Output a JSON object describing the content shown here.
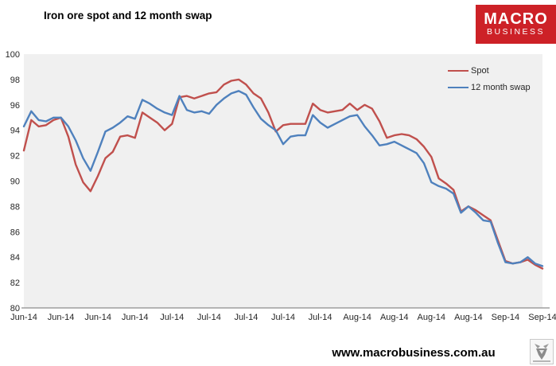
{
  "header": {
    "title": "Iron ore spot and 12 month swap"
  },
  "logo": {
    "line1": "MACRO",
    "line2": "BUSINESS",
    "bg_color": "#cd2127",
    "text_color": "#ffffff"
  },
  "footer": {
    "website": "www.macrobusiness.com.au"
  },
  "chart_data": {
    "type": "line",
    "title": "Iron ore spot and 12 month swap",
    "ylim": [
      80,
      100
    ],
    "y_ticks": [
      80,
      82,
      84,
      86,
      88,
      90,
      92,
      94,
      96,
      98,
      100
    ],
    "x_tick_labels": [
      "Jun-14",
      "Jun-14",
      "Jun-14",
      "Jun-14",
      "Jul-14",
      "Jul-14",
      "Jul-14",
      "Jul-14",
      "Jul-14",
      "Aug-14",
      "Aug-14",
      "Aug-14",
      "Aug-14",
      "Sep-14",
      "Sep-14"
    ],
    "x_tick_every": 5,
    "grid": false,
    "legend_position": "top-right-inside",
    "plot_bg": "#f0f0f0",
    "axis_color": "#8c8c8c",
    "tick_label_color": "#262626",
    "series": [
      {
        "name": "Spot",
        "color": "#c0504d",
        "values": [
          92.4,
          94.8,
          94.3,
          94.4,
          94.8,
          95.0,
          93.5,
          91.3,
          89.9,
          89.2,
          90.4,
          91.8,
          92.3,
          93.5,
          93.6,
          93.4,
          95.4,
          95.0,
          94.6,
          94.0,
          94.5,
          96.6,
          96.7,
          96.5,
          96.7,
          96.9,
          97.0,
          97.6,
          97.9,
          98.0,
          97.6,
          96.9,
          96.5,
          95.4,
          93.9,
          94.4,
          94.5,
          94.5,
          94.5,
          96.1,
          95.6,
          95.4,
          95.5,
          95.6,
          96.1,
          95.6,
          96.0,
          95.7,
          94.7,
          93.4,
          93.6,
          93.7,
          93.6,
          93.3,
          92.7,
          91.9,
          90.2,
          89.8,
          89.3,
          87.6,
          88.0,
          87.7,
          87.3,
          86.9,
          85.3,
          83.7,
          83.5,
          83.6,
          83.8,
          83.4,
          83.1
        ]
      },
      {
        "name": "12 month swap",
        "color": "#4f81bd",
        "values": [
          94.3,
          95.5,
          94.8,
          94.7,
          95.0,
          95.0,
          94.3,
          93.2,
          91.8,
          90.8,
          92.3,
          93.9,
          94.2,
          94.6,
          95.1,
          94.9,
          96.4,
          96.1,
          95.7,
          95.4,
          95.2,
          96.7,
          95.6,
          95.4,
          95.5,
          95.3,
          96.0,
          96.5,
          96.9,
          97.1,
          96.8,
          95.8,
          94.9,
          94.4,
          94.0,
          92.9,
          93.5,
          93.6,
          93.6,
          95.2,
          94.6,
          94.2,
          94.5,
          94.8,
          95.1,
          95.2,
          94.3,
          93.6,
          92.8,
          92.9,
          93.1,
          92.8,
          92.5,
          92.2,
          91.4,
          89.9,
          89.6,
          89.4,
          89.0,
          87.5,
          88.0,
          87.5,
          86.9,
          86.8,
          85.1,
          83.6,
          83.5,
          83.6,
          84.0,
          83.5,
          83.3
        ]
      }
    ]
  }
}
